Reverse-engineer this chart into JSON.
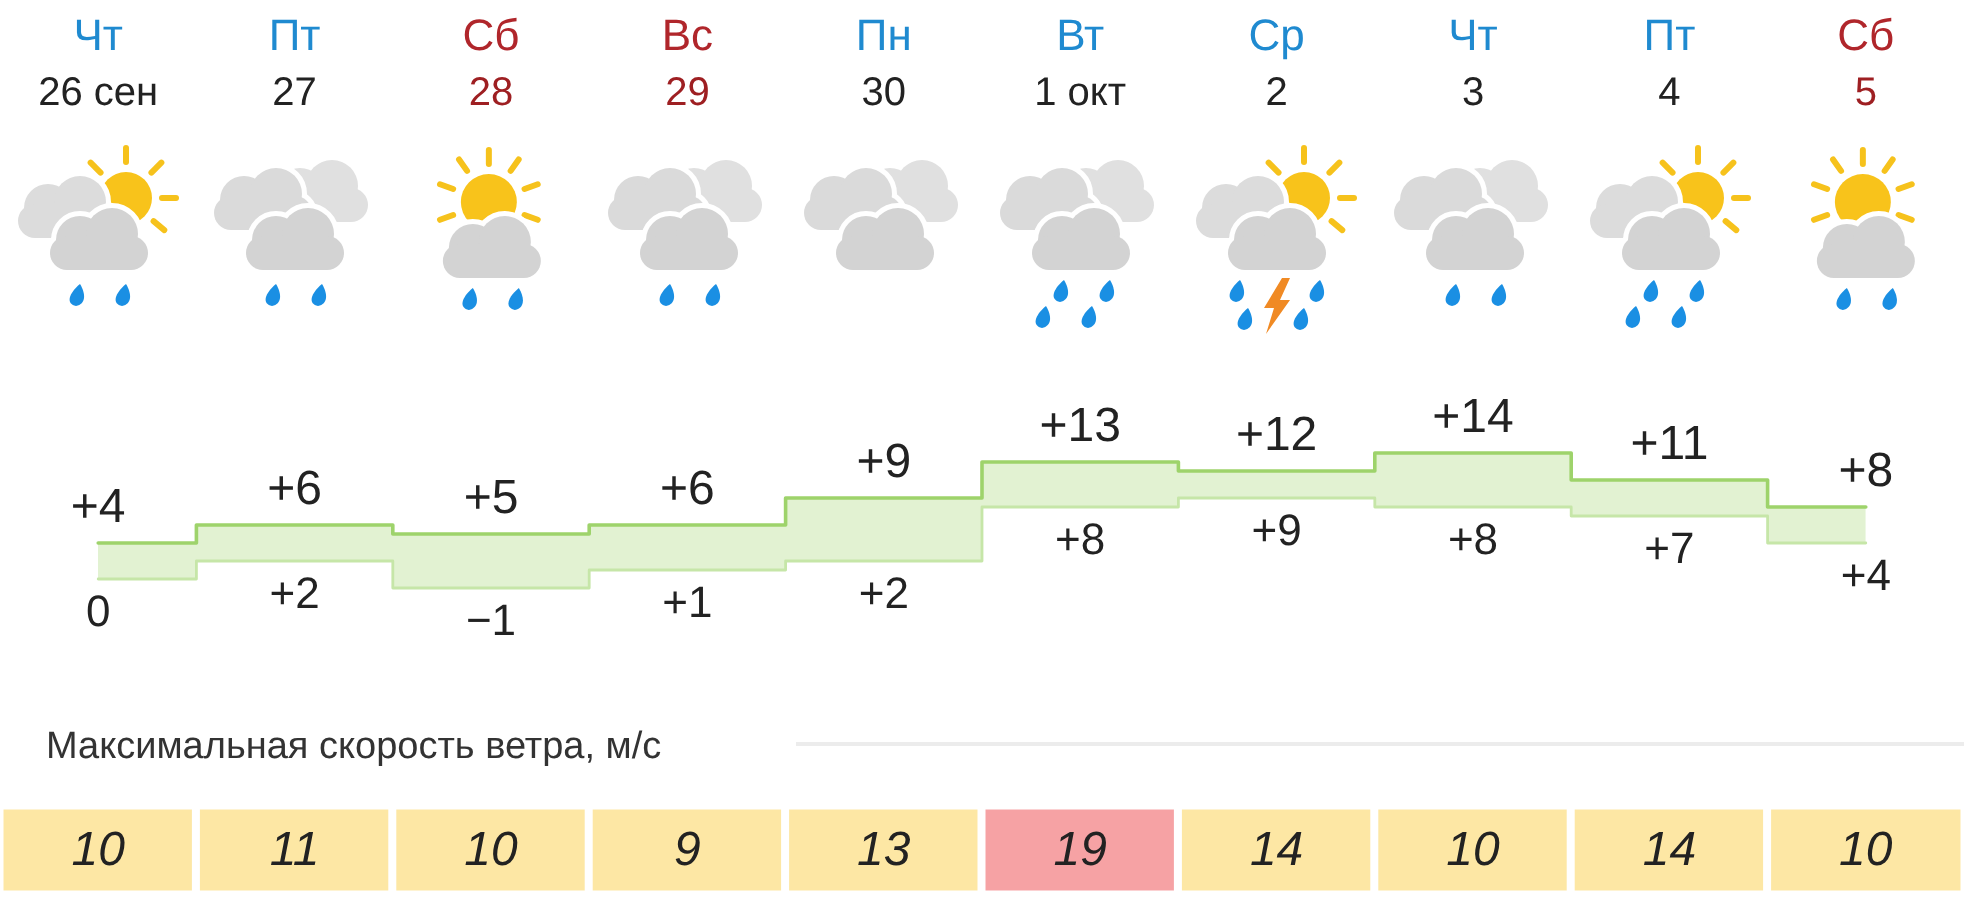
{
  "chart_data": [
    {
      "type": "step",
      "categories": [
        "Чт\n26 сен",
        "Пт\n27",
        "Сб\n28",
        "Вс\n29",
        "Пн\n30",
        "Вт\n1 окт",
        "Ср\n2",
        "Чт\n3",
        "Пт\n4",
        "Сб\n5"
      ],
      "series": [
        {
          "color": "#9ed36b",
          "values": [
            4,
            6,
            5,
            6,
            9,
            13,
            12,
            14,
            11,
            8
          ],
          "value_labels": [
            "+4",
            "+6",
            "+5",
            "+6",
            "+9",
            "+13",
            "+12",
            "+14",
            "+11",
            "+8"
          ]
        },
        {
          "color": "#c6e6a8",
          "values": [
            0,
            2,
            -1,
            1,
            2,
            8,
            9,
            8,
            7,
            4
          ],
          "value_labels": [
            "0",
            "+2",
            "−1",
            "+1",
            "+2",
            "+8",
            "+9",
            "+8",
            "+7",
            "+4"
          ]
        }
      ],
      "marker": "none",
      "tick_labels": "x"
    },
    {
      "type": "heatmap",
      "title": "Максимальная скорость ветра, м/с",
      "categories": [
        null,
        null,
        null,
        null,
        null,
        null,
        null,
        null,
        null,
        null
      ],
      "y_categories": [
        null
      ],
      "cells": [
        [
          10,
          11,
          10,
          9,
          13,
          19,
          14,
          10,
          14,
          10
        ]
      ],
      "colors": [
        "#fde7a4",
        "#fde7a4",
        "#fde7a4",
        "#fde7a4",
        "#fde7a4",
        "#f6a2a4",
        "#fde7a4",
        "#fde7a4",
        "#fde7a4",
        "#fde7a4"
      ],
      "data_labels": true,
      "tick_labels": false
    }
  ]
}
